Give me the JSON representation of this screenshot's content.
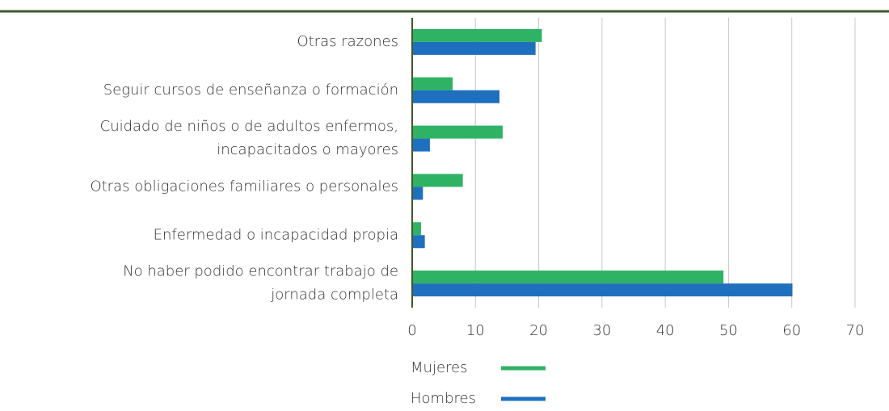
{
  "chart_data": {
    "type": "bar",
    "orientation": "horizontal",
    "categories": [
      "Otras razones",
      "Seguir cursos de enseñanza o formación",
      "Cuidado de niños o de adultos enfermos,\nincapacitados o mayores",
      "Otras obligaciones familiares o personales",
      "Enfermedad o incapacidad propia",
      "No haber podido encontrar trabajo de\njornada completa"
    ],
    "series": [
      {
        "name": "Mujeres",
        "color": "#2eb364",
        "values": [
          20.5,
          6.4,
          14.3,
          8.0,
          1.4,
          49.2
        ]
      },
      {
        "name": "Hombres",
        "color": "#1f6fbf",
        "values": [
          19.5,
          13.8,
          2.8,
          1.7,
          2.0,
          60.1
        ]
      }
    ],
    "xlim": [
      0,
      70
    ],
    "xticks": [
      0,
      10,
      20,
      30,
      40,
      50,
      60,
      70
    ],
    "grid": true,
    "legend": "bottom"
  }
}
